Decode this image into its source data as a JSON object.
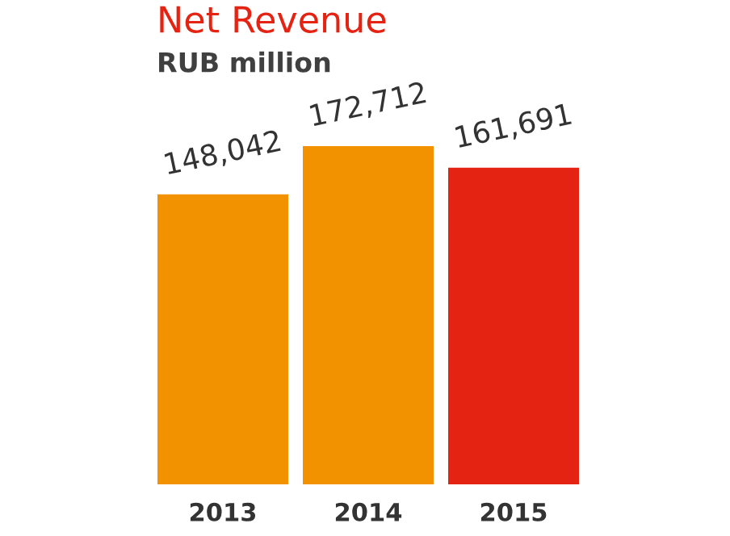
{
  "chart_data": {
    "type": "bar",
    "title": "Net Revenue",
    "subtitle": "RUB million",
    "categories": [
      "2013",
      "2014",
      "2015"
    ],
    "values": [
      148042,
      172712,
      161691
    ],
    "colors": [
      "#f39200",
      "#f39200",
      "#e42313"
    ],
    "value_labels": [
      "148,042",
      "172,712",
      "161,691"
    ],
    "tick_labels": "x",
    "grid": false,
    "legend": false
  }
}
